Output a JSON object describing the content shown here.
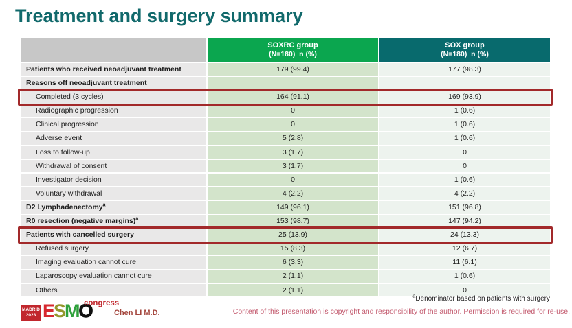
{
  "slide": {
    "title": "Treatment and surgery summary",
    "colors": {
      "title_teal": "#11696b",
      "soxrc_header_green": "#0ba64f",
      "sox_header_teal": "#086a6d",
      "label_cell_gray": "#e9e8e8",
      "soxrc_cell_green": "#d3e4cb",
      "sox_cell_light": "#edf3ee",
      "highlight_red": "#a2292a",
      "esmo_red": "#c1272d"
    }
  },
  "table": {
    "columns": [
      {
        "label": "",
        "sublabel": ""
      },
      {
        "label": "SOXRC group",
        "sublabel": "(N=180)  n (%)"
      },
      {
        "label": "SOX group",
        "sublabel": "(N=180)  n (%)"
      }
    ],
    "rows": [
      {
        "label": "Patients who received neoadjuvant treatment",
        "bold": true,
        "indent": false,
        "soxrc": "179 (99.4)",
        "sox": "177 (98.3)",
        "highlight": false
      },
      {
        "label": "Reasons off neoadjuvant treatment",
        "bold": true,
        "indent": false,
        "soxrc": "",
        "sox": "",
        "highlight": false
      },
      {
        "label": "Completed (3 cycles)",
        "bold": false,
        "indent": true,
        "soxrc": "164 (91.1)",
        "sox": "169 (93.9)",
        "highlight": true
      },
      {
        "label": "Radiographic progression",
        "bold": false,
        "indent": true,
        "soxrc": "0",
        "sox": "1 (0.6)",
        "highlight": false
      },
      {
        "label": "Clinical progression",
        "bold": false,
        "indent": true,
        "soxrc": "0",
        "sox": "1 (0.6)",
        "highlight": false
      },
      {
        "label": "Adverse event",
        "bold": false,
        "indent": true,
        "soxrc": "5 (2.8)",
        "sox": "1 (0.6)",
        "highlight": false
      },
      {
        "label": "Loss to follow-up",
        "bold": false,
        "indent": true,
        "soxrc": "3 (1.7)",
        "sox": "0",
        "highlight": false
      },
      {
        "label": "Withdrawal of consent",
        "bold": false,
        "indent": true,
        "soxrc": "3 (1.7)",
        "sox": "0",
        "highlight": false
      },
      {
        "label": "Investigator decision",
        "bold": false,
        "indent": true,
        "soxrc": "0",
        "sox": "1 (0.6)",
        "highlight": false
      },
      {
        "label": "Voluntary withdrawal",
        "bold": false,
        "indent": true,
        "soxrc": "4 (2.2)",
        "sox": "4 (2.2)",
        "highlight": false
      },
      {
        "label": "D2 Lymphadenectomy",
        "sup": "a",
        "bold": true,
        "indent": false,
        "soxrc": "149 (96.1)",
        "sox": "151 (96.8)",
        "highlight": false
      },
      {
        "label": "R0 resection (negative margins)",
        "sup": "a",
        "bold": true,
        "indent": false,
        "soxrc": "153 (98.7)",
        "sox": "147 (94.2)",
        "highlight": false
      },
      {
        "label": "Patients with cancelled surgery",
        "bold": true,
        "indent": false,
        "soxrc": "25 (13.9)",
        "sox": "24 (13.3)",
        "highlight": true
      },
      {
        "label": "Refused surgery",
        "bold": false,
        "indent": true,
        "soxrc": "15 (8.3)",
        "sox": "12 (6.7)",
        "highlight": false
      },
      {
        "label": "Imaging evaluation cannot cure",
        "bold": false,
        "indent": true,
        "soxrc": "6 (3.3)",
        "sox": "11 (6.1)",
        "highlight": false
      },
      {
        "label": "Laparoscopy evaluation cannot cure",
        "bold": false,
        "indent": true,
        "soxrc": "2 (1.1)",
        "sox": "1 (0.6)",
        "highlight": false
      },
      {
        "label": "Others",
        "bold": false,
        "indent": true,
        "soxrc": "2 (1.1)",
        "sox": "0",
        "highlight": false
      }
    ]
  },
  "footer": {
    "logo": {
      "city": "MADRID",
      "year": "2023",
      "esmo_e": "E",
      "esmo_s": "S",
      "esmo_m": "M",
      "esmo_o": "O",
      "congress": "congress"
    },
    "author": "Chen LI M.D.",
    "footnote_sup": "a",
    "footnote_text": "Denominator based on patients with surgery",
    "copyright": "Content of this presentation is copyright and responsibility of the author.  Permission is required for re-use."
  }
}
